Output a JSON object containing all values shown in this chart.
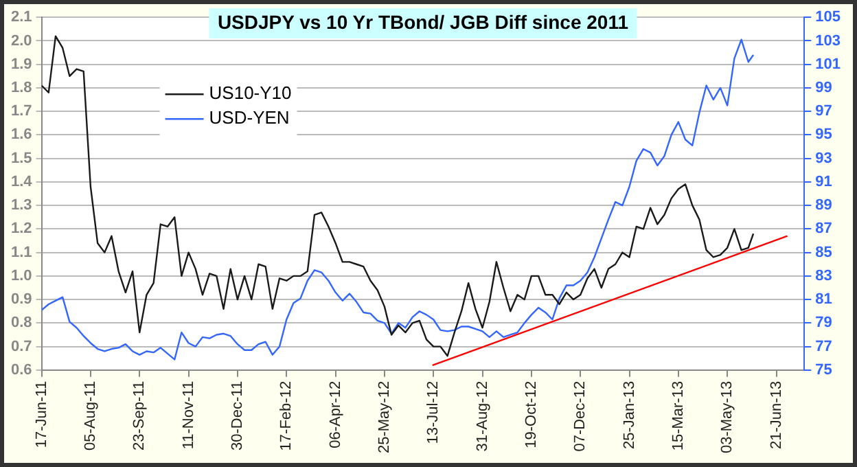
{
  "chart_data": {
    "type": "line",
    "title": "USDJPY vs 10 Yr TBond/ JGB Diff since 2011",
    "x": [
      "2011-06-17",
      "2011-06-24",
      "2011-07-01",
      "2011-07-08",
      "2011-07-15",
      "2011-07-22",
      "2011-07-29",
      "2011-08-05",
      "2011-08-12",
      "2011-08-19",
      "2011-08-26",
      "2011-09-02",
      "2011-09-09",
      "2011-09-16",
      "2011-09-23",
      "2011-09-30",
      "2011-10-07",
      "2011-10-14",
      "2011-10-21",
      "2011-10-28",
      "2011-11-04",
      "2011-11-11",
      "2011-11-18",
      "2011-11-25",
      "2011-12-02",
      "2011-12-09",
      "2011-12-16",
      "2011-12-23",
      "2011-12-30",
      "2012-01-06",
      "2012-01-13",
      "2012-01-20",
      "2012-01-27",
      "2012-02-03",
      "2012-02-10",
      "2012-02-17",
      "2012-02-24",
      "2012-03-02",
      "2012-03-09",
      "2012-03-16",
      "2012-03-23",
      "2012-03-30",
      "2012-04-06",
      "2012-04-13",
      "2012-04-20",
      "2012-04-27",
      "2012-05-04",
      "2012-05-11",
      "2012-05-18",
      "2012-05-25",
      "2012-06-01",
      "2012-06-08",
      "2012-06-15",
      "2012-06-22",
      "2012-06-29",
      "2012-07-06",
      "2012-07-13",
      "2012-07-20",
      "2012-07-27",
      "2012-08-03",
      "2012-08-10",
      "2012-08-17",
      "2012-08-24",
      "2012-08-31",
      "2012-09-07",
      "2012-09-14",
      "2012-09-21",
      "2012-09-28",
      "2012-10-05",
      "2012-10-12",
      "2012-10-19",
      "2012-10-26",
      "2012-11-02",
      "2012-11-09",
      "2012-11-16",
      "2012-11-23",
      "2012-11-30",
      "2012-12-07",
      "2012-12-14",
      "2012-12-21",
      "2012-12-28",
      "2013-01-04",
      "2013-01-11",
      "2013-01-18",
      "2013-01-25",
      "2013-02-01",
      "2013-02-08",
      "2013-02-15",
      "2013-02-22",
      "2013-03-01",
      "2013-03-08",
      "2013-03-15",
      "2013-03-22",
      "2013-03-29",
      "2013-04-05",
      "2013-04-12",
      "2013-04-19",
      "2013-04-26",
      "2013-05-03",
      "2013-05-10",
      "2013-05-17",
      "2013-05-24",
      "2013-05-29"
    ],
    "series": [
      {
        "name": "US10-Y10",
        "color": "#1a1a1a",
        "values": [
          1.81,
          1.78,
          2.02,
          1.97,
          1.85,
          1.88,
          1.87,
          1.38,
          1.14,
          1.1,
          1.17,
          1.02,
          0.93,
          1.02,
          0.76,
          0.92,
          0.97,
          1.22,
          1.21,
          1.25,
          1.0,
          1.1,
          1.03,
          0.92,
          1.01,
          1.0,
          0.86,
          1.03,
          0.9,
          1.0,
          0.9,
          1.05,
          1.04,
          0.86,
          0.99,
          0.98,
          1.0,
          1.0,
          1.02,
          1.26,
          1.27,
          1.21,
          1.14,
          1.06,
          1.06,
          1.05,
          1.04,
          0.98,
          0.94,
          0.87,
          0.75,
          0.79,
          0.76,
          0.8,
          0.81,
          0.73,
          0.7,
          0.7,
          0.66,
          0.76,
          0.85,
          0.97,
          0.86,
          0.78,
          0.89,
          1.06,
          0.95,
          0.85,
          0.92,
          0.9,
          1.0,
          1.0,
          0.92,
          0.92,
          0.88,
          0.93,
          0.9,
          0.92,
          0.99,
          1.03,
          0.95,
          1.03,
          1.05,
          1.1,
          1.08,
          1.21,
          1.2,
          1.29,
          1.22,
          1.26,
          1.33,
          1.37,
          1.39,
          1.3,
          1.24,
          1.11,
          1.08,
          1.09,
          1.12,
          1.2,
          1.11,
          1.12,
          1.18
        ]
      },
      {
        "name": "USD-YEN",
        "color": "#3366ff",
        "axis": "y2",
        "values": [
          80.1,
          80.6,
          80.9,
          81.2,
          79.1,
          78.6,
          77.9,
          77.3,
          76.8,
          76.6,
          76.8,
          76.9,
          77.2,
          76.6,
          76.3,
          76.6,
          76.5,
          76.9,
          76.4,
          75.9,
          78.2,
          77.3,
          77.0,
          77.8,
          77.7,
          78.0,
          78.1,
          77.9,
          77.2,
          76.7,
          76.7,
          77.2,
          77.4,
          76.3,
          77.0,
          79.3,
          80.7,
          81.1,
          82.6,
          83.5,
          83.3,
          82.6,
          81.6,
          80.9,
          81.5,
          80.8,
          79.9,
          79.8,
          79.2,
          79.0,
          78.1,
          79.0,
          78.6,
          79.5,
          80.0,
          79.7,
          79.3,
          78.4,
          78.3,
          78.4,
          78.7,
          78.7,
          78.5,
          78.3,
          77.8,
          78.3,
          77.8,
          78.0,
          78.2,
          79.0,
          79.7,
          80.3,
          79.9,
          79.3,
          81.1,
          82.2,
          82.2,
          82.6,
          83.3,
          84.6,
          86.2,
          87.8,
          89.3,
          89.0,
          90.6,
          92.8,
          93.8,
          93.5,
          92.4,
          93.2,
          95.0,
          96.1,
          94.6,
          94.1,
          96.9,
          99.2,
          98.0,
          99.0,
          97.5,
          101.5,
          103.1,
          101.2,
          101.8
        ]
      },
      {
        "type": "line",
        "color": "#ff0000",
        "x": [
          "2012-07-12",
          "2013-07-02"
        ],
        "values": [
          0.62,
          1.17
        ]
      }
    ],
    "xlim": [
      "2011-06-17",
      "2013-07-19"
    ],
    "xticks": [
      {
        "value": "2011-06-17",
        "label": "17-Jun-11"
      },
      {
        "value": "2011-08-05",
        "label": "05-Aug-11"
      },
      {
        "value": "2011-09-23",
        "label": "23-Sep-11"
      },
      {
        "value": "2011-11-11",
        "label": "11-Nov-11"
      },
      {
        "value": "2011-12-30",
        "label": "30-Dec-11"
      },
      {
        "value": "2012-02-17",
        "label": "17-Feb-12"
      },
      {
        "value": "2012-04-06",
        "label": "06-Apr-12"
      },
      {
        "value": "2012-05-25",
        "label": "25-May-12"
      },
      {
        "value": "2012-07-13",
        "label": "13-Jul-12"
      },
      {
        "value": "2012-08-31",
        "label": "31-Aug-12"
      },
      {
        "value": "2012-10-19",
        "label": "19-Oct-12"
      },
      {
        "value": "2012-12-07",
        "label": "07-Dec-12"
      },
      {
        "value": "2013-01-25",
        "label": "25-Jan-13"
      },
      {
        "value": "2013-03-15",
        "label": "15-Mar-13"
      },
      {
        "value": "2013-05-03",
        "label": "03-May-13"
      },
      {
        "value": "2013-06-21",
        "label": "21-Jun-13"
      }
    ],
    "ylim": [
      0.6,
      2.1
    ],
    "yticks": [
      0.6,
      0.7,
      0.8,
      0.9,
      {
        "value": 1,
        "label": "1.0"
      },
      1.1,
      1.2,
      1.3,
      1.4,
      1.5,
      1.6,
      1.7,
      1.8,
      1.9,
      {
        "value": 2,
        "label": "2.0"
      },
      2.1
    ],
    "y2lim": [
      75,
      105
    ],
    "y2ticks": [
      75,
      77,
      79,
      81,
      83,
      85,
      87,
      89,
      91,
      93,
      95,
      97,
      99,
      101,
      103,
      105
    ],
    "grid": "y",
    "legend": "top left"
  }
}
